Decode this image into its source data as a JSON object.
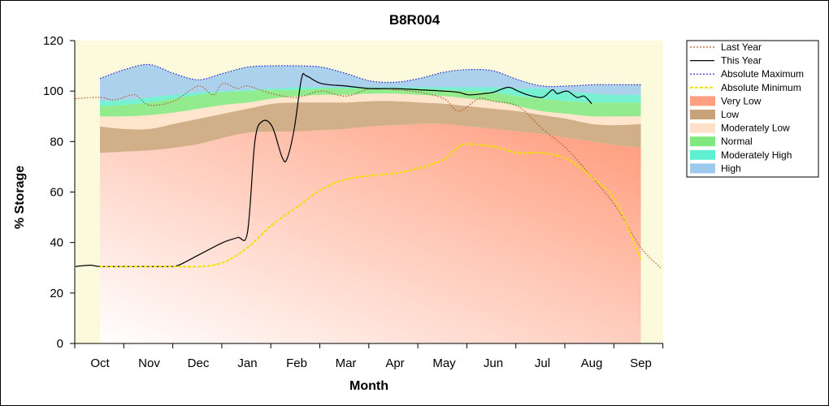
{
  "chart_data": {
    "type": "area",
    "title": "B8R004",
    "xlabel": "Month",
    "ylabel": "% Storage",
    "ylim": [
      0,
      120
    ],
    "yticks": [
      0,
      20,
      40,
      60,
      80,
      100,
      120
    ],
    "categories": [
      "Oct",
      "Nov",
      "Dec",
      "Jan",
      "Feb",
      "Mar",
      "Apr",
      "May",
      "Jun",
      "Jul",
      "Aug",
      "Sep"
    ],
    "legend_position": "right",
    "x": [
      0,
      0.5,
      1,
      1.5,
      2,
      2.5,
      3,
      3.5,
      4,
      4.5,
      5,
      5.5,
      6,
      6.5,
      7,
      7.5,
      8,
      8.5,
      9,
      9.5,
      10,
      10.5,
      11
    ],
    "bands": [
      {
        "name": "Very Low",
        "color": "#ff9e80",
        "lower": [
          0,
          0,
          0,
          0,
          0,
          0,
          0,
          0,
          0,
          0,
          0,
          0,
          0,
          0,
          0,
          0,
          0,
          0,
          0,
          0,
          0,
          0,
          0
        ],
        "upper": [
          75.5,
          76,
          76.5,
          77.5,
          79,
          81.5,
          83.5,
          84,
          84,
          84.5,
          85,
          86,
          86.5,
          87,
          87,
          86,
          85,
          84,
          83,
          81.5,
          80,
          78.5,
          77.5
        ]
      },
      {
        "name": "Low",
        "color": "#c9a27a",
        "lower": [
          75.5,
          76,
          76.5,
          77.5,
          79,
          81.5,
          83.5,
          84,
          84,
          84.5,
          85,
          86,
          86.5,
          87,
          87,
          86,
          85,
          84,
          83,
          81.5,
          80,
          78.5,
          77.5
        ],
        "upper": [
          86,
          85,
          85,
          87,
          89,
          91,
          93,
          95,
          95.5,
          95.5,
          95.5,
          96,
          96,
          95.5,
          95,
          94,
          93,
          92,
          90.5,
          89,
          87,
          86.5,
          87
        ]
      },
      {
        "name": "Moderately Low",
        "color": "#ffe0c8",
        "lower": [
          86,
          85,
          85,
          87,
          89,
          91,
          93,
          95,
          95.5,
          95.5,
          95.5,
          96,
          96,
          95.5,
          95,
          94,
          93,
          92,
          90.5,
          89,
          87,
          86.5,
          87
        ],
        "upper": [
          90,
          90,
          90.5,
          91.5,
          93,
          94.5,
          95.5,
          97,
          98,
          98.5,
          98.5,
          99,
          99,
          98.5,
          98,
          97,
          96,
          94,
          92,
          91,
          90,
          90,
          90
        ]
      },
      {
        "name": "Normal",
        "color": "#7fe87f",
        "lower": [
          90,
          90,
          90.5,
          91.5,
          93,
          94.5,
          95.5,
          97,
          98,
          98.5,
          98.5,
          99,
          99,
          98.5,
          98,
          97,
          96,
          94,
          92,
          91,
          90,
          90,
          90
        ],
        "upper": [
          94,
          94.5,
          95.5,
          97,
          98.5,
          99.5,
          100,
          100.5,
          100.5,
          101,
          101,
          101,
          101,
          101,
          100.5,
          100,
          99.5,
          98,
          97,
          96,
          95.5,
          95.5,
          95.5
        ]
      },
      {
        "name": "Moderately High",
        "color": "#5ef0d0",
        "lower": [
          94,
          94.5,
          95.5,
          97,
          98.5,
          99.5,
          100,
          100.5,
          100.5,
          101,
          101,
          101,
          101,
          101,
          100.5,
          100,
          99.5,
          98,
          97,
          96,
          95.5,
          95.5,
          95.5
        ],
        "upper": [
          96,
          96.5,
          97.5,
          98.5,
          99.5,
          100,
          100.5,
          101,
          101.5,
          101.5,
          101.5,
          101.5,
          101.5,
          101.5,
          101.5,
          101.5,
          101.5,
          101,
          101,
          100,
          99,
          98.5,
          98.5
        ]
      },
      {
        "name": "High",
        "color": "#9ec9ee",
        "lower": [
          96,
          96.5,
          97.5,
          98.5,
          99.5,
          100,
          100.5,
          101,
          101.5,
          101.5,
          101.5,
          101.5,
          101.5,
          101.5,
          101.5,
          101.5,
          101.5,
          101,
          101,
          100,
          99,
          98.5,
          98.5
        ],
        "upper": [
          105,
          108.5,
          110.5,
          107,
          104.5,
          107,
          109.5,
          110,
          110,
          109.5,
          107,
          104,
          103.5,
          105,
          107.5,
          108.5,
          108,
          104.5,
          102,
          102,
          102.5,
          102.5,
          102.5
        ]
      }
    ],
    "series": [
      {
        "name": "Last Year",
        "color": "#b05a30",
        "style": "dotted",
        "x": [
          -0.5,
          0,
          0.3,
          0.7,
          1,
          1.5,
          2,
          2.3,
          2.5,
          2.8,
          3,
          3.5,
          4,
          4.5,
          5,
          5.5,
          6,
          6.5,
          7,
          7.3,
          7.7,
          8,
          8.5,
          9,
          9.5,
          10,
          10.5,
          11,
          11.4
        ],
        "y": [
          97,
          97.5,
          96.5,
          98.5,
          94.5,
          96,
          102,
          98.5,
          103,
          101,
          102,
          99,
          97.5,
          100,
          98,
          101,
          100.5,
          99.5,
          97,
          92,
          97,
          96,
          94,
          85,
          77,
          66,
          54,
          38,
          30
        ]
      },
      {
        "name": "This Year",
        "color": "#000000",
        "style": "solid",
        "x": [
          -0.5,
          -0.2,
          0,
          0.5,
          1,
          1.4,
          1.6,
          2,
          2.5,
          2.8,
          3,
          3.15,
          3.3,
          3.5,
          3.7,
          3.8,
          3.95,
          4.1,
          4.2,
          4.5,
          5,
          5.5,
          6,
          6.5,
          7,
          7.3,
          7.5,
          7.8,
          8,
          8.3,
          8.5,
          8.7,
          9,
          9.2,
          9.3,
          9.5,
          9.7,
          9.85,
          10
        ],
        "y": [
          30.5,
          31,
          30.5,
          30.5,
          30.5,
          30.5,
          31,
          35,
          40,
          42,
          44,
          80,
          88,
          86,
          74,
          73,
          85,
          105,
          106,
          103,
          102,
          101,
          101,
          100.5,
          100,
          99.5,
          98.5,
          99,
          99.5,
          101.5,
          100,
          98.5,
          97.5,
          100.5,
          99,
          100,
          97.5,
          98,
          95
        ]
      },
      {
        "name": "Absolute Maximum",
        "color": "#2222cc",
        "style": "dotted",
        "x": [
          0,
          0.5,
          1,
          1.5,
          2,
          2.5,
          3,
          3.5,
          4,
          4.5,
          5,
          5.5,
          6,
          6.5,
          7,
          7.5,
          8,
          8.5,
          9,
          9.5,
          10,
          10.5,
          11
        ],
        "y": [
          105,
          108.5,
          110.5,
          107,
          104.5,
          107,
          109.5,
          110,
          110,
          109.5,
          107,
          104,
          103.5,
          105,
          107.5,
          108.5,
          108,
          104.5,
          102,
          102,
          102.5,
          102.5,
          102.5
        ]
      },
      {
        "name": "Absolute Minimum",
        "color": "#f0e000",
        "style": "dashed",
        "x": [
          0,
          0.5,
          1,
          1.5,
          2,
          2.5,
          3,
          3.5,
          4,
          4.5,
          5,
          5.5,
          6,
          6.5,
          7,
          7.3,
          7.5,
          8,
          8.5,
          9,
          9.5,
          10,
          10.5,
          11
        ],
        "y": [
          30.5,
          30.5,
          30.5,
          30.5,
          30.5,
          32,
          38,
          47,
          54,
          61,
          65,
          66.5,
          67.5,
          69.5,
          73,
          78,
          79,
          78,
          75.5,
          75.5,
          73,
          66,
          56,
          33
        ]
      }
    ],
    "legend": [
      {
        "label": "Last Year",
        "kind": "line",
        "color": "#b05a30",
        "dash": "2,2"
      },
      {
        "label": "This Year",
        "kind": "line",
        "color": "#000000",
        "dash": ""
      },
      {
        "label": "Absolute Maximum",
        "kind": "line",
        "color": "#2222cc",
        "dash": "2,2"
      },
      {
        "label": "Absolute Minimum",
        "kind": "line",
        "color": "#f0e000",
        "dash": "4,2"
      },
      {
        "label": "Very Low",
        "kind": "swatch",
        "color": "#ff9e80"
      },
      {
        "label": "Low",
        "kind": "swatch",
        "color": "#c9a27a"
      },
      {
        "label": "Moderately Low",
        "kind": "swatch",
        "color": "#ffe0c8"
      },
      {
        "label": "Normal",
        "kind": "swatch",
        "color": "#7fe87f"
      },
      {
        "label": "Moderately High",
        "kind": "swatch",
        "color": "#5ef0d0"
      },
      {
        "label": "High",
        "kind": "swatch",
        "color": "#9ec9ee"
      }
    ]
  }
}
